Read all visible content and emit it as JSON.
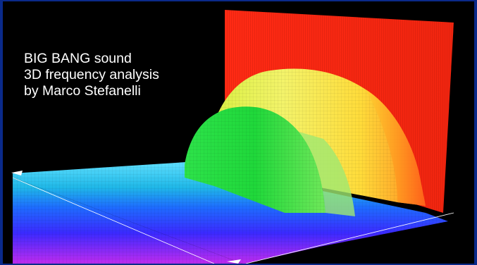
{
  "caption": {
    "line1": "BIG BANG sound",
    "line2": "3D frequency analysis",
    "line3": "by Marco Stefanelli"
  },
  "chart_data": {
    "type": "3d-surface",
    "title": "BIG BANG sound",
    "subtitle": "3D frequency analysis by Marco Stefanelli",
    "grid": true,
    "colors": {
      "low": "#8a2be2",
      "mid_low": "#1e6bff",
      "mid": "#19e6d6",
      "mid_high": "#1fe01f",
      "high": "#ffef30",
      "peak": "#ff2a14"
    },
    "surface_profile": {
      "x": [
        0,
        0.1,
        0.2,
        0.3,
        0.4,
        0.5,
        0.6,
        0.7,
        0.8,
        0.9,
        1.0
      ],
      "level": [
        0.05,
        0.05,
        0.05,
        0.1,
        0.55,
        0.8,
        0.95,
        0.9,
        0.6,
        0.3,
        1.0
      ]
    }
  }
}
